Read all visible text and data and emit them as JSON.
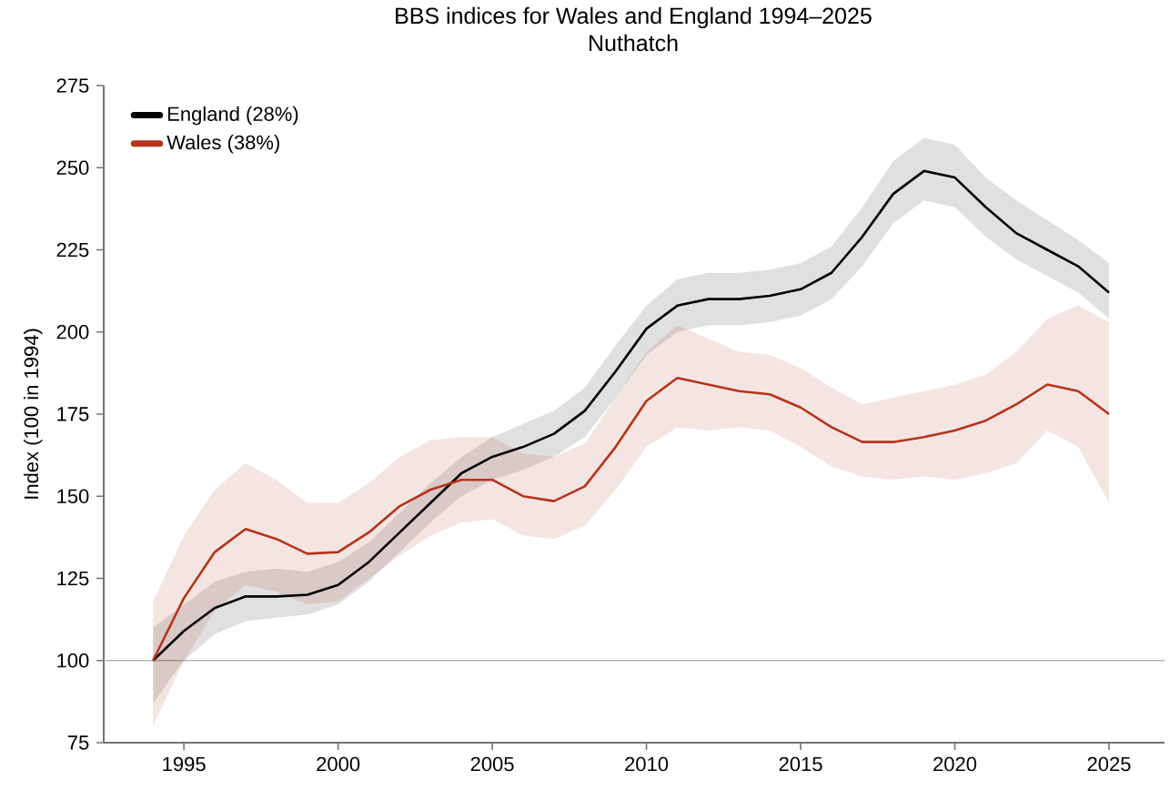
{
  "chart_data": {
    "type": "line",
    "title": "BBS indices for Wales and England 1994–2025",
    "subtitle": "Nuthatch",
    "ylabel": "Index (100 in 1994)",
    "x": [
      1994,
      1995,
      1996,
      1997,
      1998,
      1999,
      2000,
      2001,
      2002,
      2003,
      2004,
      2005,
      2006,
      2007,
      2008,
      2009,
      2010,
      2011,
      2012,
      2013,
      2014,
      2015,
      2016,
      2017,
      2018,
      2019,
      2020,
      2021,
      2022,
      2023,
      2024,
      2025
    ],
    "series": [
      {
        "name": "England (28%)",
        "color": "#000000",
        "values": [
          100,
          109,
          116,
          119.5,
          119.5,
          120,
          123,
          130,
          139,
          148,
          157,
          162,
          165,
          169,
          176,
          188,
          201,
          208,
          210,
          210,
          211,
          213,
          218,
          229,
          242,
          249,
          247,
          238,
          230,
          225,
          220,
          212
        ],
        "lower": [
          87,
          100,
          108,
          112,
          113,
          114,
          117,
          124,
          133,
          142,
          150,
          155,
          158,
          162,
          168,
          180,
          193,
          200,
          202,
          202,
          203,
          205,
          210,
          220,
          233,
          240,
          238,
          229,
          222,
          217,
          212,
          204
        ],
        "upper": [
          110,
          117,
          124,
          127,
          128,
          127,
          130,
          136,
          145,
          154,
          162,
          168,
          172,
          176,
          183,
          196,
          208,
          216,
          218,
          218,
          219,
          221,
          226,
          238,
          252,
          259,
          257,
          247,
          240,
          234,
          228,
          221
        ]
      },
      {
        "name": "Wales (38%)",
        "color": "#b5341c",
        "values": [
          100,
          119,
          133,
          140,
          137,
          132.5,
          133,
          139,
          147,
          152,
          155,
          155,
          150,
          148.5,
          153,
          165,
          179,
          186,
          184,
          182,
          181,
          177,
          171,
          166.5,
          166.5,
          168,
          170,
          173,
          178,
          184,
          182,
          175
        ],
        "lower": [
          80,
          100,
          115,
          123,
          121,
          117,
          118,
          125,
          132,
          138,
          142,
          143,
          138,
          137,
          141,
          152,
          165,
          171,
          170,
          171,
          170,
          165,
          159,
          156,
          155,
          156,
          155,
          157,
          160,
          170,
          165,
          148
        ],
        "upper": [
          118,
          138,
          152,
          160,
          155,
          148,
          148,
          154,
          162,
          167,
          168,
          168,
          163,
          162,
          166,
          180,
          194,
          202,
          198,
          194,
          193,
          189,
          183,
          178,
          180,
          182,
          184,
          187,
          194,
          204,
          208,
          203
        ]
      }
    ],
    "xlim": [
      1992.4,
      2026.8
    ],
    "ylim": [
      75,
      275
    ],
    "xticks": [
      1995,
      2000,
      2005,
      2010,
      2015,
      2020,
      2025
    ],
    "yticks": [
      75,
      100,
      125,
      150,
      175,
      200,
      225,
      250,
      275
    ],
    "ref_lines": [
      {
        "axis": "y",
        "value": 100,
        "color": "#b0b0b0"
      }
    ],
    "legend": "top left",
    "grid": false,
    "marker": "none",
    "line_style": "solid"
  }
}
